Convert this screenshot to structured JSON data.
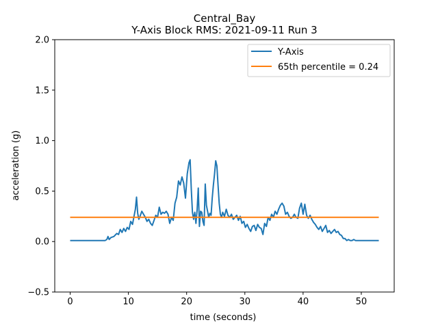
{
  "chart_data": {
    "type": "line",
    "title": "Central_Bay\nY-Axis Block RMS: 2021-09-11 Run 3",
    "title_lines": [
      "Central_Bay",
      "Y-Axis Block RMS: 2021-09-11 Run 3"
    ],
    "xlabel": "time (seconds)",
    "ylabel": "acceleration (g)",
    "xlim": [
      -2.65,
      55.65
    ],
    "ylim": [
      -0.5,
      2.0
    ],
    "xticks": [
      0,
      10,
      20,
      30,
      40,
      50
    ],
    "xtick_labels": [
      "0",
      "10",
      "20",
      "30",
      "40",
      "50"
    ],
    "yticks": [
      -0.5,
      0.0,
      0.5,
      1.0,
      1.5,
      2.0
    ],
    "ytick_labels": [
      "−0.5",
      "0.0",
      "0.5",
      "1.0",
      "1.5",
      "2.0"
    ],
    "grid": false,
    "legend_position": "top-right",
    "series": [
      {
        "name": "Y-Axis",
        "color": "#1f77b4",
        "x": [
          0.0,
          1.0,
          2.0,
          3.0,
          4.0,
          5.0,
          6.0,
          6.3,
          6.5,
          6.7,
          7.0,
          7.5,
          8.0,
          8.3,
          8.6,
          8.9,
          9.2,
          9.5,
          9.8,
          10.1,
          10.4,
          10.7,
          11.0,
          11.2,
          11.4,
          11.6,
          11.8,
          12.0,
          12.3,
          12.6,
          12.9,
          13.2,
          13.5,
          13.8,
          14.1,
          14.4,
          14.7,
          15.0,
          15.3,
          15.6,
          15.9,
          16.2,
          16.5,
          16.8,
          17.1,
          17.4,
          17.7,
          18.0,
          18.3,
          18.6,
          18.9,
          19.2,
          19.5,
          19.8,
          20.1,
          20.4,
          20.6,
          20.8,
          21.0,
          21.2,
          21.4,
          21.6,
          21.8,
          22.0,
          22.2,
          22.4,
          22.6,
          22.8,
          23.0,
          23.2,
          23.4,
          23.6,
          23.8,
          24.0,
          24.2,
          24.4,
          24.6,
          24.8,
          25.0,
          25.2,
          25.4,
          25.6,
          25.8,
          26.0,
          26.2,
          26.5,
          26.8,
          27.1,
          27.4,
          27.7,
          28.0,
          28.3,
          28.6,
          28.9,
          29.2,
          29.5,
          29.8,
          30.1,
          30.4,
          30.7,
          31.0,
          31.3,
          31.6,
          31.9,
          32.2,
          32.5,
          32.8,
          33.1,
          33.4,
          33.7,
          34.0,
          34.3,
          34.6,
          34.9,
          35.2,
          35.5,
          35.8,
          36.1,
          36.4,
          36.7,
          37.0,
          37.3,
          37.6,
          37.9,
          38.2,
          38.5,
          38.8,
          39.1,
          39.4,
          39.7,
          40.0,
          40.3,
          40.6,
          40.9,
          41.2,
          41.5,
          41.8,
          42.1,
          42.4,
          42.7,
          43.0,
          43.3,
          43.6,
          43.9,
          44.2,
          44.5,
          44.8,
          45.1,
          45.4,
          45.7,
          46.0,
          46.3,
          46.6,
          46.9,
          47.2,
          47.5,
          47.8,
          48.1,
          48.4,
          48.7,
          49.0,
          50.0,
          51.0,
          52.0,
          53.0
        ],
        "y": [
          0.01,
          0.01,
          0.01,
          0.01,
          0.01,
          0.01,
          0.01,
          0.02,
          0.05,
          0.02,
          0.04,
          0.05,
          0.08,
          0.07,
          0.12,
          0.09,
          0.13,
          0.1,
          0.14,
          0.12,
          0.2,
          0.17,
          0.26,
          0.32,
          0.44,
          0.28,
          0.22,
          0.25,
          0.3,
          0.27,
          0.24,
          0.2,
          0.22,
          0.18,
          0.16,
          0.21,
          0.26,
          0.24,
          0.34,
          0.27,
          0.29,
          0.28,
          0.3,
          0.27,
          0.18,
          0.24,
          0.21,
          0.38,
          0.44,
          0.6,
          0.56,
          0.64,
          0.58,
          0.43,
          0.67,
          0.78,
          0.81,
          0.52,
          0.29,
          0.22,
          0.29,
          0.18,
          0.31,
          0.53,
          0.15,
          0.3,
          0.29,
          0.2,
          0.16,
          0.57,
          0.36,
          0.3,
          0.24,
          0.28,
          0.26,
          0.43,
          0.56,
          0.67,
          0.8,
          0.75,
          0.56,
          0.38,
          0.27,
          0.24,
          0.29,
          0.25,
          0.32,
          0.26,
          0.24,
          0.27,
          0.22,
          0.24,
          0.26,
          0.21,
          0.25,
          0.18,
          0.2,
          0.14,
          0.17,
          0.13,
          0.1,
          0.15,
          0.16,
          0.11,
          0.17,
          0.14,
          0.13,
          0.07,
          0.18,
          0.15,
          0.24,
          0.21,
          0.27,
          0.24,
          0.3,
          0.27,
          0.32,
          0.36,
          0.38,
          0.35,
          0.27,
          0.29,
          0.25,
          0.23,
          0.24,
          0.27,
          0.24,
          0.23,
          0.33,
          0.38,
          0.27,
          0.37,
          0.26,
          0.23,
          0.26,
          0.22,
          0.19,
          0.17,
          0.14,
          0.12,
          0.15,
          0.1,
          0.13,
          0.16,
          0.09,
          0.11,
          0.08,
          0.1,
          0.12,
          0.09,
          0.1,
          0.07,
          0.06,
          0.03,
          0.03,
          0.01,
          0.02,
          0.01,
          0.01,
          0.02,
          0.01,
          0.01,
          0.01,
          0.01,
          0.01
        ]
      },
      {
        "name": "65th percentile = 0.24",
        "color": "#ff7f0e",
        "x": [
          0.0,
          53.0
        ],
        "y": [
          0.24,
          0.24
        ]
      }
    ]
  }
}
